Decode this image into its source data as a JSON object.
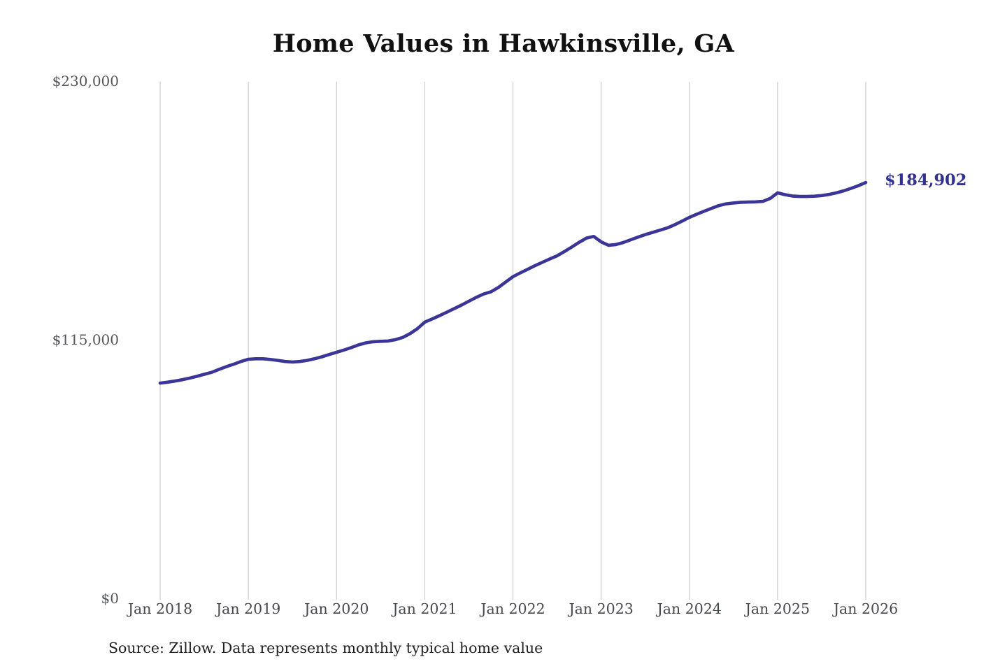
{
  "header": {
    "title": "Home Values in Hawkinsville, GA"
  },
  "footer": {
    "source_note": "Source: Zillow. Data represents monthly typical home value"
  },
  "colors": {
    "background": "#ffffff",
    "line": "#3a3597",
    "end_label_text": "#33318f",
    "gridline": "#cccccc",
    "y_tick_text": "#55565a",
    "x_tick_text": "#47484c",
    "title_text": "#111111",
    "source_text": "#1f1f1f"
  },
  "chart_data": {
    "type": "line",
    "title": "Home Values in Hawkinsville, GA",
    "xlabel": "",
    "ylabel": "",
    "ylim": [
      0,
      230000
    ],
    "xlim_years": [
      2018,
      2026
    ],
    "grid": "vertical-only",
    "legend": "none",
    "y_ticks": [
      {
        "label": "$0",
        "value": 0
      },
      {
        "label": "$115,000",
        "value": 115000
      },
      {
        "label": "$230,000",
        "value": 230000
      }
    ],
    "x_tick_labels": [
      "Jan 2018",
      "Jan 2019",
      "Jan 2020",
      "Jan 2021",
      "Jan 2022",
      "Jan 2023",
      "Jan 2024",
      "Jan 2025",
      "Jan 2026"
    ],
    "last_point": {
      "month": "2026-01",
      "value": 184902,
      "label": "$184,902"
    },
    "series": [
      {
        "name": "Typical home value",
        "frequency": "monthly",
        "start_month": "2018-01",
        "color": "#3a3597",
        "values": [
          95700,
          96100,
          96600,
          97200,
          97900,
          98700,
          99600,
          100500,
          101800,
          103000,
          104100,
          105300,
          106300,
          106500,
          106500,
          106200,
          105800,
          105300,
          105100,
          105300,
          105800,
          106500,
          107400,
          108400,
          109400,
          110400,
          111500,
          112700,
          113600,
          114100,
          114300,
          114400,
          115000,
          116000,
          117700,
          119900,
          122800,
          124200,
          125700,
          127200,
          128800,
          130400,
          132100,
          133800,
          135300,
          136300,
          138200,
          140600,
          143000,
          144700,
          146300,
          147900,
          149400,
          150900,
          152300,
          154200,
          156200,
          158300,
          160200,
          160900,
          158500,
          157000,
          157300,
          158200,
          159400,
          160600,
          161700,
          162700,
          163700,
          164700,
          166100,
          167700,
          169400,
          170800,
          172100,
          173400,
          174600,
          175400,
          175800,
          176100,
          176200,
          176300,
          176500,
          177800,
          180300,
          179500,
          178900,
          178700,
          178700,
          178800,
          179100,
          179600,
          180300,
          181200,
          182300,
          183500,
          184902
        ]
      }
    ]
  }
}
